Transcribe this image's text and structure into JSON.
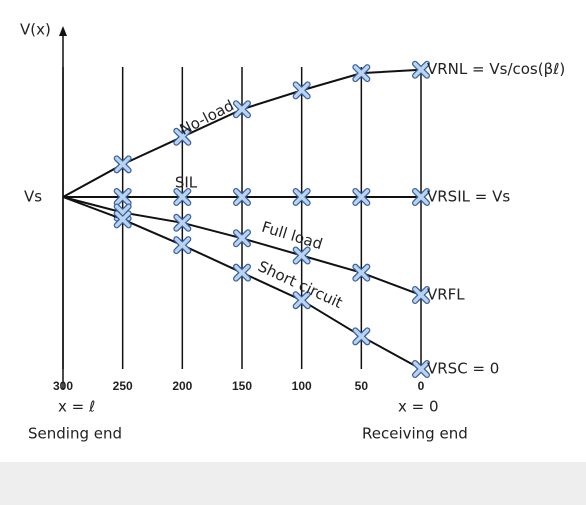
{
  "chart_data": {
    "type": "line",
    "y_label": "V(x)",
    "x": [
      300,
      250,
      200,
      150,
      100,
      50,
      0
    ],
    "xlim": [
      300,
      0
    ],
    "xticks": [
      300,
      250,
      200,
      150,
      100,
      50,
      0
    ],
    "ylim": [
      0,
      1.9
    ],
    "yticks": [
      {
        "value": 1,
        "label": "Vs"
      }
    ],
    "grid": true,
    "color": "#111111",
    "marker_color": "#b8d4f0",
    "series": [
      {
        "name": "No-load",
        "values": [
          1,
          1.19,
          1.35,
          1.51,
          1.62,
          1.72,
          1.74
        ]
      },
      {
        "name": "SIL",
        "values": [
          1,
          1,
          1,
          1,
          1,
          1,
          1
        ]
      },
      {
        "name": "Full load",
        "values": [
          1,
          0.91,
          0.85,
          0.76,
          0.66,
          0.56,
          0.43
        ]
      },
      {
        "name": "Short circuit",
        "values": [
          1,
          0.87,
          0.72,
          0.56,
          0.4,
          0.19,
          0
        ]
      }
    ],
    "annotations": [
      "VRNL = Vs/cos(βℓ)",
      "VRSIL = Vs",
      "VRFL",
      "VRSC = 0"
    ],
    "x_notes": [
      "x = ℓ",
      "x = 0"
    ],
    "x_ends": [
      "Sending end",
      "Receiving end"
    ]
  }
}
